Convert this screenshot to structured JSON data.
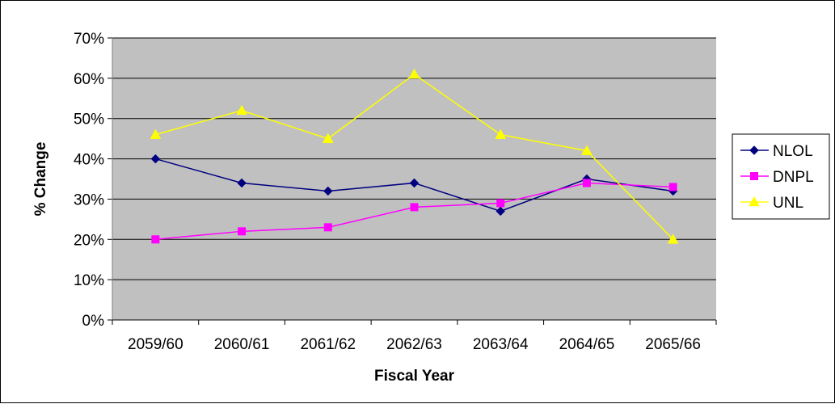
{
  "chart_data": {
    "type": "line",
    "title": "",
    "xlabel": "Fiscal Year",
    "ylabel": "% Change",
    "categories": [
      "2059/60",
      "2060/61",
      "2061/62",
      "2062/63",
      "2063/64",
      "2064/65",
      "2065/66"
    ],
    "ylim": [
      0,
      70
    ],
    "yticks": [
      "0%",
      "10%",
      "20%",
      "30%",
      "40%",
      "50%",
      "60%",
      "70%"
    ],
    "grid": true,
    "legend_position": "right",
    "plot_background": "#c0c0c0",
    "series": [
      {
        "name": "NLOL",
        "color": "#000080",
        "marker": "diamond",
        "values": [
          40,
          34,
          32,
          34,
          27,
          35,
          32
        ]
      },
      {
        "name": "DNPL",
        "color": "#ff00ff",
        "marker": "square",
        "values": [
          20,
          22,
          23,
          28,
          29,
          34,
          33
        ]
      },
      {
        "name": "UNL",
        "color": "#ffff00",
        "marker": "triangle",
        "values": [
          46,
          52,
          45,
          61,
          46,
          42,
          20
        ]
      }
    ]
  }
}
